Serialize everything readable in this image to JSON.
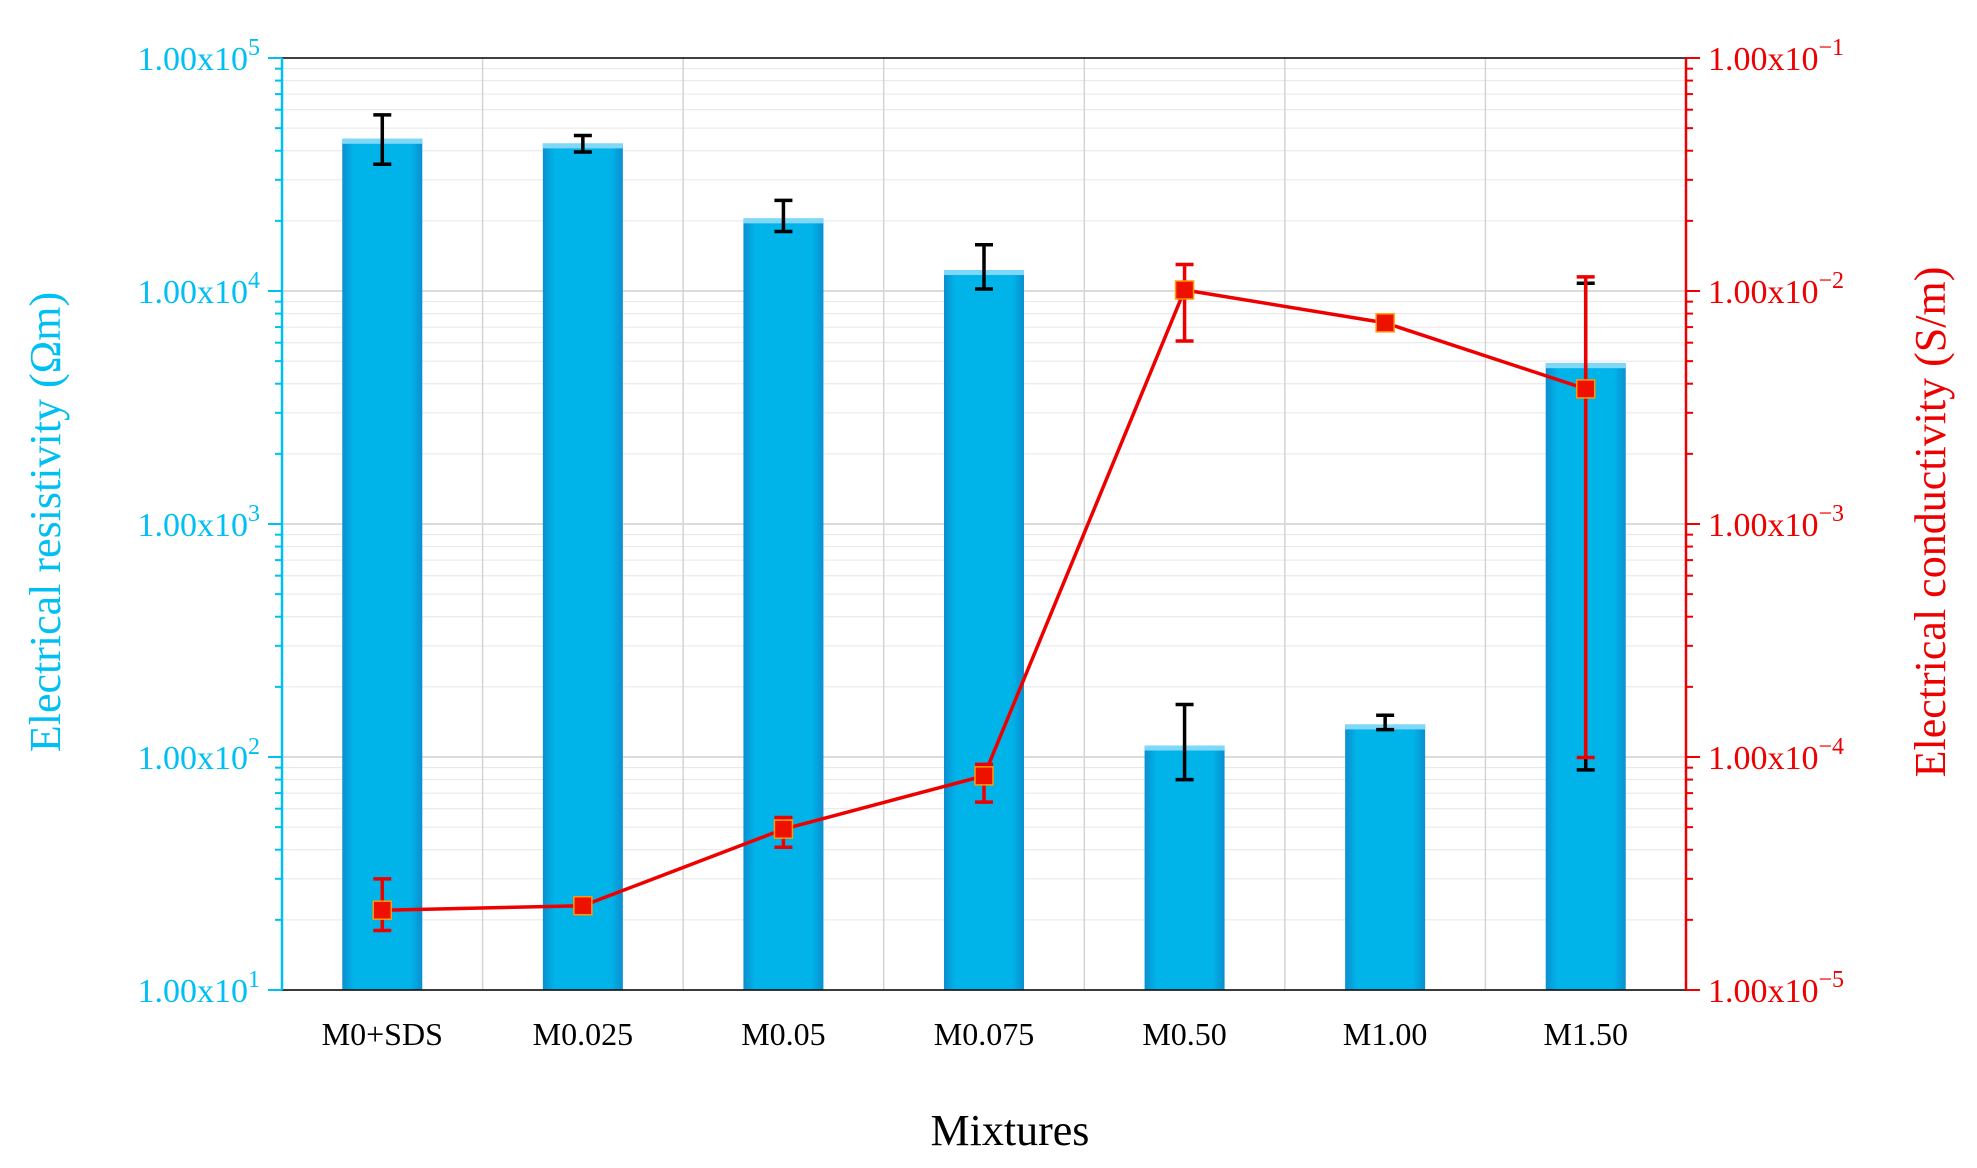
{
  "chart_data": {
    "type": "bar",
    "xlabel": "Mixtures",
    "categories": [
      "M0+SDS",
      "M0.025",
      "M0.05",
      "M0.075",
      "M0.50",
      "M1.00",
      "M1.50"
    ],
    "y_left": {
      "label": "Electrical resistivity (Ωm)",
      "scale": "log",
      "ylim": [
        10,
        100000
      ],
      "tick_values": [
        10,
        100,
        1000,
        10000,
        100000
      ],
      "tick_mantissa": "1.00x10",
      "tick_exponents": [
        "1",
        "2",
        "3",
        "4",
        "5"
      ],
      "color": "#00bff3"
    },
    "y_right": {
      "label": "Electrical conductivity (S/m)",
      "scale": "log",
      "ylim": [
        1e-05,
        0.1
      ],
      "tick_values": [
        1e-05,
        0.0001,
        0.001,
        0.01,
        0.1
      ],
      "tick_mantissa": "1.00x10",
      "tick_exponents": [
        "−5",
        "−4",
        "−3",
        "−2",
        "−1"
      ],
      "color": "#ee0000"
    },
    "series": [
      {
        "type": "bar",
        "axis": "left",
        "color": "#00b4ea",
        "values": [
          45000,
          43000,
          20500,
          12300,
          112,
          138,
          4900
        ],
        "error_low": [
          35000,
          39500,
          18000,
          10200,
          80,
          131,
          88
        ],
        "error_high": [
          57000,
          46500,
          24500,
          15800,
          168,
          151,
          10800
        ]
      },
      {
        "type": "line",
        "axis": "right",
        "color": "#ee0000",
        "marker": "square",
        "marker_fill": "#ee1100",
        "values": [
          2.2e-05,
          2.3e-05,
          4.9e-05,
          8.3e-05,
          0.0101,
          0.0073,
          0.0038
        ],
        "error_low": [
          1.8e-05,
          2.3e-05,
          4.1e-05,
          6.4e-05,
          0.0061,
          0.0068,
          9.95e-05
        ],
        "error_high": [
          3e-05,
          2.4e-05,
          5.5e-05,
          9.3e-05,
          0.013,
          0.0077,
          0.0115
        ]
      }
    ],
    "grid": true,
    "legend": "none"
  }
}
